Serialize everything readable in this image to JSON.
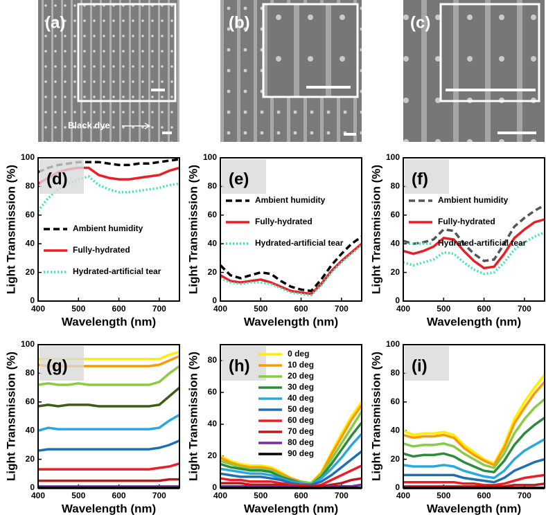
{
  "images": [
    {
      "label": "(a)",
      "annotation": "Black dye"
    },
    {
      "label": "(b)"
    },
    {
      "label": "(c)"
    }
  ],
  "chart_data": [
    {
      "type": "line",
      "label": "(d)",
      "y_label": "Light Transmission (%)",
      "x_label": "Wavelength (nm)",
      "x": [
        400,
        425,
        450,
        475,
        500,
        525,
        550,
        575,
        600,
        625,
        650,
        675,
        700,
        725,
        750
      ],
      "xlim": [
        400,
        750
      ],
      "xticks": [
        400,
        500,
        600,
        700
      ],
      "ylim": [
        0,
        100
      ],
      "yticks": [
        0,
        20,
        40,
        60,
        80,
        100
      ],
      "legend": "lower left",
      "series": [
        {
          "name": "Ambient humidity",
          "color": "#000000",
          "style": "dashed",
          "values": [
            90,
            93,
            95,
            96,
            97,
            97,
            97,
            96,
            95,
            95,
            96,
            96,
            97,
            98,
            99
          ]
        },
        {
          "name": "Fully-hydrated",
          "color": "#ee1c24",
          "style": "solid",
          "values": [
            82,
            86,
            90,
            92,
            93,
            93,
            88,
            86,
            85,
            85,
            86,
            87,
            88,
            91,
            93
          ]
        },
        {
          "name": "Hydrated-artificial tear",
          "color": "#2ee8b0",
          "style": "dotted",
          "values": [
            63,
            72,
            78,
            82,
            85,
            87,
            81,
            78,
            76,
            76,
            77,
            78,
            79,
            81,
            82
          ]
        }
      ]
    },
    {
      "type": "line",
      "label": "(e)",
      "y_label": "Light Transmission (%)",
      "x_label": "Wavelength (nm)",
      "x": [
        400,
        425,
        450,
        475,
        500,
        525,
        550,
        575,
        600,
        625,
        650,
        675,
        700,
        725,
        750
      ],
      "xlim": [
        400,
        750
      ],
      "xticks": [
        400,
        500,
        600,
        700
      ],
      "ylim": [
        0,
        100
      ],
      "yticks": [
        0,
        20,
        40,
        60,
        80,
        100
      ],
      "legend": "upper left",
      "series": [
        {
          "name": "Ambient humidity",
          "color": "#000000",
          "style": "dashed",
          "values": [
            25,
            18,
            16,
            18,
            20,
            19,
            14,
            10,
            8,
            7,
            15,
            25,
            33,
            40,
            45
          ]
        },
        {
          "name": "Fully-hydrated",
          "color": "#ee1c24",
          "style": "solid",
          "values": [
            18,
            14,
            13,
            14,
            15,
            13,
            10,
            7,
            6,
            5,
            12,
            21,
            28,
            34,
            40
          ]
        },
        {
          "name": "Hydrated-artificial tear",
          "color": "#2ee8b0",
          "style": "dotted",
          "values": [
            16,
            13,
            12,
            13,
            13,
            12,
            9,
            6,
            5,
            4,
            11,
            20,
            27,
            33,
            39
          ]
        }
      ]
    },
    {
      "type": "line",
      "label": "(f)",
      "y_label": "Light Transmission (%)",
      "x_label": "Wavelength (nm)",
      "x": [
        400,
        425,
        450,
        475,
        500,
        525,
        550,
        575,
        600,
        625,
        650,
        675,
        700,
        725,
        750
      ],
      "xlim": [
        400,
        750
      ],
      "xticks": [
        400,
        500,
        600,
        700
      ],
      "ylim": [
        0,
        100
      ],
      "yticks": [
        0,
        20,
        40,
        60,
        80,
        100
      ],
      "legend": "upper left",
      "series": [
        {
          "name": "Ambient humidity",
          "color": "#555555",
          "style": "dashed",
          "values": [
            42,
            40,
            41,
            43,
            50,
            49,
            40,
            33,
            28,
            29,
            40,
            52,
            58,
            63,
            67
          ]
        },
        {
          "name": "Fully-hydrated",
          "color": "#ee1c24",
          "style": "solid",
          "values": [
            35,
            33,
            35,
            38,
            44,
            43,
            35,
            28,
            23,
            24,
            33,
            44,
            50,
            55,
            57
          ]
        },
        {
          "name": "Hydrated-artificial tear",
          "color": "#2ee8b0",
          "style": "dotted",
          "values": [
            27,
            25,
            27,
            29,
            34,
            33,
            27,
            22,
            19,
            20,
            27,
            36,
            41,
            45,
            48
          ]
        }
      ]
    },
    {
      "type": "line",
      "label": "(g)",
      "y_label": "Light Transmission (%)",
      "x_label": "Wavelength (nm)",
      "x": [
        400,
        425,
        450,
        475,
        500,
        525,
        550,
        575,
        600,
        625,
        650,
        675,
        700,
        725,
        750
      ],
      "xlim": [
        400,
        750
      ],
      "xticks": [
        400,
        500,
        600,
        700
      ],
      "ylim": [
        0,
        100
      ],
      "yticks": [
        0,
        20,
        40,
        60,
        80,
        100
      ],
      "series": [
        {
          "color": "#ffee00",
          "style": "solid",
          "values": [
            90,
            90,
            90,
            90,
            90,
            90,
            90,
            90,
            90,
            90,
            90,
            90,
            90,
            93,
            95
          ]
        },
        {
          "color": "#ff9900",
          "style": "solid",
          "values": [
            86,
            85,
            85,
            85,
            85,
            85,
            85,
            85,
            85,
            85,
            85,
            85,
            86,
            89,
            92
          ]
        },
        {
          "color": "#88cc44",
          "style": "solid",
          "values": [
            72,
            73,
            72,
            72,
            73,
            72,
            72,
            72,
            72,
            72,
            72,
            72,
            74,
            80,
            85
          ]
        },
        {
          "color": "#3d5c1a",
          "style": "solid",
          "values": [
            57,
            58,
            57,
            58,
            58,
            58,
            57,
            57,
            57,
            57,
            57,
            57,
            58,
            64,
            70
          ]
        },
        {
          "color": "#29a8e0",
          "style": "solid",
          "values": [
            40,
            42,
            41,
            41,
            41,
            41,
            41,
            41,
            41,
            41,
            41,
            41,
            42,
            47,
            51
          ]
        },
        {
          "color": "#1f6fb5",
          "style": "solid",
          "values": [
            26,
            27,
            27,
            27,
            27,
            27,
            27,
            27,
            27,
            27,
            27,
            27,
            28,
            30,
            33
          ]
        },
        {
          "color": "#ee1c24",
          "style": "solid",
          "values": [
            13,
            13,
            13,
            13,
            13,
            13,
            13,
            13,
            13,
            13,
            13,
            13,
            14,
            15,
            17
          ]
        },
        {
          "color": "#c0171b",
          "style": "solid",
          "values": [
            5,
            5,
            5,
            5,
            5,
            5,
            5,
            5,
            5,
            5,
            5,
            5,
            5,
            6,
            6
          ]
        },
        {
          "color": "#7030a0",
          "style": "solid",
          "values": [
            1,
            1,
            1,
            1,
            1,
            1,
            1,
            1,
            1,
            1,
            1,
            1,
            1,
            1,
            1
          ]
        },
        {
          "color": "#000000",
          "style": "solid",
          "values": [
            0,
            0,
            0,
            0,
            0,
            0,
            0,
            0,
            0,
            0,
            0,
            0,
            0,
            0,
            0
          ]
        }
      ]
    },
    {
      "type": "line",
      "label": "(h)",
      "y_label": "Light Transmission (%)",
      "x_label": "Wavelength (nm)",
      "x": [
        400,
        425,
        450,
        475,
        500,
        525,
        550,
        575,
        600,
        625,
        650,
        675,
        700,
        725,
        750
      ],
      "xlim": [
        400,
        750
      ],
      "xticks": [
        400,
        500,
        600,
        700
      ],
      "ylim": [
        0,
        90
      ],
      "yticks": [
        0,
        20,
        40,
        60,
        80
      ],
      "legend": "upper center",
      "series": [
        {
          "name": "0 deg",
          "color": "#ffee00",
          "style": "solid",
          "values": [
            20,
            17,
            15,
            14,
            14,
            13,
            10,
            6,
            4,
            3,
            10,
            22,
            34,
            45,
            54
          ]
        },
        {
          "name": "10 deg",
          "color": "#ff9900",
          "style": "solid",
          "values": [
            19,
            16,
            14,
            13,
            13,
            12,
            9,
            6,
            4,
            3,
            9,
            21,
            32,
            43,
            52
          ]
        },
        {
          "name": "20 deg",
          "color": "#88cc44",
          "style": "solid",
          "values": [
            17,
            15,
            13,
            12,
            12,
            11,
            8,
            5,
            4,
            3,
            8,
            18,
            28,
            38,
            48
          ]
        },
        {
          "name": "30 deg",
          "color": "#2e8b3e",
          "style": "solid",
          "values": [
            15,
            13,
            12,
            11,
            11,
            10,
            7,
            5,
            3,
            2,
            7,
            15,
            24,
            33,
            41
          ]
        },
        {
          "name": "40 deg",
          "color": "#29a8e0",
          "style": "solid",
          "values": [
            12,
            11,
            10,
            9,
            9,
            8,
            6,
            4,
            3,
            2,
            6,
            12,
            19,
            27,
            34
          ]
        },
        {
          "name": "50 deg",
          "color": "#1f6fb5",
          "style": "solid",
          "values": [
            9,
            8,
            7,
            7,
            7,
            6,
            5,
            3,
            2,
            2,
            4,
            8,
            13,
            18,
            23
          ]
        },
        {
          "name": "60 deg",
          "color": "#ee1c24",
          "style": "solid",
          "values": [
            6,
            5,
            5,
            4,
            4,
            4,
            3,
            2,
            2,
            1,
            2,
            5,
            8,
            11,
            14
          ]
        },
        {
          "name": "70 deg",
          "color": "#c0171b",
          "style": "solid",
          "values": [
            3,
            3,
            3,
            2,
            2,
            2,
            2,
            1,
            1,
            1,
            1,
            2,
            3,
            5,
            6
          ]
        },
        {
          "name": "80 deg",
          "color": "#7030a0",
          "style": "solid",
          "values": [
            1,
            1,
            1,
            1,
            1,
            1,
            1,
            1,
            0,
            0,
            0,
            1,
            1,
            1,
            2
          ]
        },
        {
          "name": "90 deg",
          "color": "#000000",
          "style": "solid",
          "values": [
            0,
            0,
            0,
            0,
            0,
            0,
            0,
            0,
            0,
            0,
            0,
            0,
            0,
            0,
            0
          ]
        }
      ]
    },
    {
      "type": "line",
      "label": "(i)",
      "y_label": "Light Transmission (%)",
      "x_label": "Wavelength (nm)",
      "x": [
        400,
        425,
        450,
        475,
        500,
        525,
        550,
        575,
        600,
        625,
        650,
        675,
        700,
        725,
        750
      ],
      "xlim": [
        400,
        750
      ],
      "xticks": [
        400,
        500,
        600,
        700
      ],
      "ylim": [
        0,
        100
      ],
      "yticks": [
        0,
        20,
        40,
        60,
        80,
        100
      ],
      "series": [
        {
          "color": "#ffee00",
          "style": "solid",
          "values": [
            40,
            37,
            38,
            38,
            39,
            37,
            30,
            25,
            20,
            17,
            30,
            48,
            60,
            70,
            79
          ]
        },
        {
          "color": "#ff9900",
          "style": "solid",
          "values": [
            37,
            35,
            36,
            36,
            37,
            35,
            28,
            23,
            19,
            16,
            28,
            45,
            56,
            66,
            74
          ]
        },
        {
          "color": "#88cc44",
          "style": "solid",
          "values": [
            31,
            29,
            30,
            30,
            31,
            29,
            24,
            20,
            16,
            14,
            24,
            38,
            48,
            56,
            62
          ]
        },
        {
          "color": "#2e8b3e",
          "style": "solid",
          "values": [
            24,
            22,
            23,
            23,
            24,
            22,
            18,
            15,
            12,
            11,
            19,
            30,
            38,
            44,
            49
          ]
        },
        {
          "color": "#29a8e0",
          "style": "solid",
          "values": [
            16,
            15,
            15,
            15,
            16,
            15,
            12,
            10,
            8,
            7,
            12,
            20,
            26,
            30,
            34
          ]
        },
        {
          "color": "#1f6fb5",
          "style": "solid",
          "values": [
            9,
            9,
            9,
            9,
            9,
            9,
            7,
            6,
            5,
            4,
            7,
            12,
            15,
            18,
            20
          ]
        },
        {
          "color": "#ee1c24",
          "style": "solid",
          "values": [
            4,
            4,
            4,
            4,
            4,
            4,
            3,
            3,
            2,
            2,
            3,
            5,
            7,
            8,
            9
          ]
        },
        {
          "color": "#c0171b",
          "style": "solid",
          "values": [
            1,
            1,
            1,
            1,
            1,
            1,
            1,
            1,
            1,
            1,
            1,
            2,
            2,
            2,
            3
          ]
        },
        {
          "color": "#7030a0",
          "style": "solid",
          "values": [
            0,
            0,
            0,
            0,
            0,
            0,
            0,
            0,
            0,
            0,
            0,
            0,
            0,
            0,
            0
          ]
        },
        {
          "color": "#000000",
          "style": "solid",
          "values": [
            0,
            0,
            0,
            0,
            0,
            0,
            0,
            0,
            0,
            0,
            0,
            0,
            0,
            0,
            0
          ]
        }
      ]
    }
  ]
}
